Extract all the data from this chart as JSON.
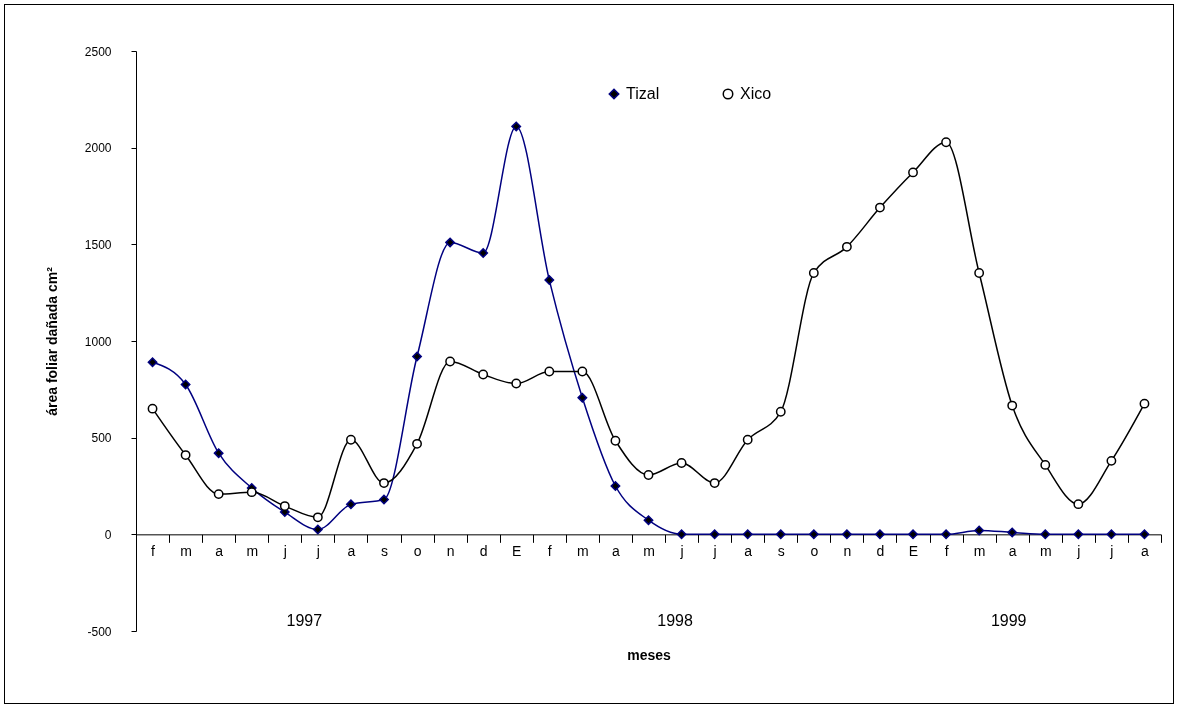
{
  "chart_data": {
    "type": "line",
    "xlabel": "meses",
    "ylabel": "área foliar dañada cm²",
    "categories": [
      "f",
      "m",
      "a",
      "m",
      "j",
      "j",
      "a",
      "s",
      "o",
      "n",
      "d",
      "E",
      "f",
      "m",
      "a",
      "m",
      "j",
      "j",
      "a",
      "s",
      "o",
      "n",
      "d",
      "E",
      "f",
      "m",
      "a",
      "m",
      "j",
      "j",
      "a"
    ],
    "series": [
      {
        "name": "Tizal",
        "color": "#000080",
        "marker": "diamond",
        "values": [
          890,
          775,
          420,
          240,
          115,
          25,
          155,
          180,
          920,
          1510,
          1455,
          2110,
          1315,
          707,
          250,
          73,
          0,
          0,
          0,
          0,
          0,
          0,
          0,
          0,
          0,
          20,
          10,
          0,
          0,
          0,
          0
        ]
      },
      {
        "name": "Xico",
        "color": "#000000",
        "marker": "circle",
        "values": [
          650,
          410,
          208,
          218,
          146,
          88,
          489,
          265,
          468,
          894,
          827,
          780,
          842,
          842,
          484,
          307,
          369,
          265,
          489,
          634,
          1352,
          1487,
          1690,
          1872,
          2028,
          1352,
          666,
          359,
          156,
          380,
          676
        ]
      }
    ],
    "ylim": [
      -500,
      2500
    ],
    "yticks": [
      -500,
      0,
      500,
      1000,
      1500,
      2000,
      2500
    ],
    "grid": false,
    "legend": "top",
    "annotations": [
      "1997",
      "1998",
      "1999"
    ]
  }
}
